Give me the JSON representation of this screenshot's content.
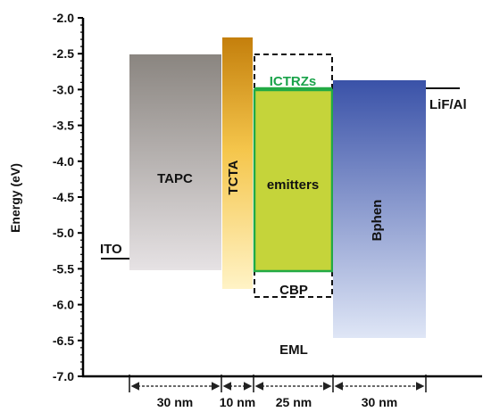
{
  "axis": {
    "ylabel": "Energy (eV)",
    "ymin": -7.0,
    "ymax": -2.0,
    "ticks": [
      "-2.0",
      "-2.5",
      "-3.0",
      "-3.5",
      "-4.0",
      "-4.5",
      "-5.0",
      "-5.5",
      "-6.0",
      "-6.5",
      "-7.0"
    ]
  },
  "layers": [
    {
      "name": "TAPC",
      "lumo": -2.5,
      "homo": -5.5
    },
    {
      "name": "TCTA",
      "lumo": -2.27,
      "homo": -5.77
    },
    {
      "name": "CBP",
      "lumo": -2.5,
      "homo": -5.9
    },
    {
      "name": "ICTRZs",
      "lumo": -3.0
    },
    {
      "name": "emitters",
      "lumo": -3.0,
      "homo": -5.52
    },
    {
      "name": "Bphen",
      "lumo": -2.88,
      "homo": -6.47
    }
  ],
  "electrodes": [
    {
      "name": "ITO",
      "level": -5.35
    },
    {
      "name": "LiF/Al",
      "level": -2.98
    }
  ],
  "extra_labels": {
    "eml": "EML"
  },
  "thickness": [
    "30 nm",
    "10 nm",
    "25 nm",
    "30 nm"
  ],
  "colors": {
    "tctra_top": "#c8860a",
    "emitter_fill": "#c5d43a",
    "emitter_border": "#22aa44",
    "ictrz_text": "#1aa34a",
    "bphen_top": "#3a52a8"
  }
}
